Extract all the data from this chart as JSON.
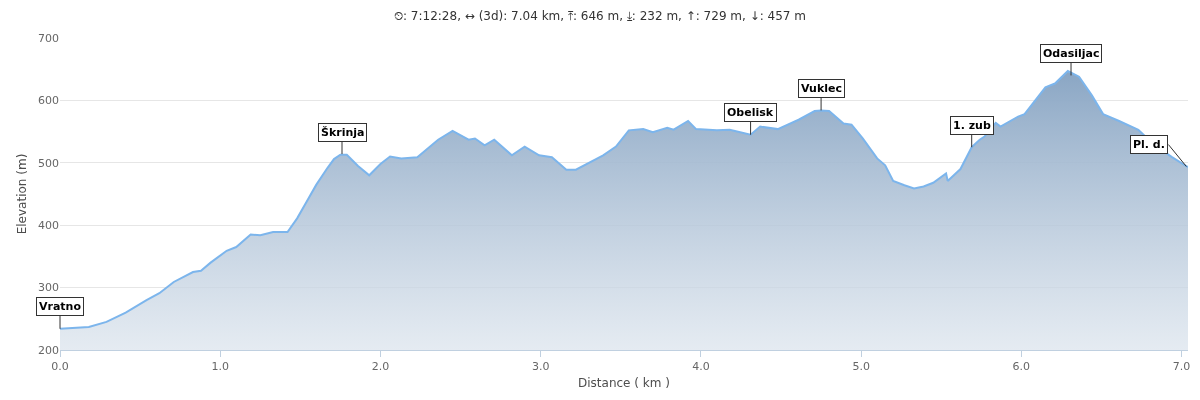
{
  "chart_data": {
    "type": "area",
    "title": "⏲: 7:12:28, ↔ (3d): 7.04 km, ⤒: 646 m, ⤓: 232 m, ↑: 729 m, ↓: 457 m",
    "xlabel": "Distance ( km )",
    "ylabel": "Elevation (m)",
    "x": [
      0,
      0.18,
      0.29,
      0.41,
      0.54,
      0.62,
      0.71,
      0.83,
      0.88,
      0.94,
      1.04,
      1.1,
      1.19,
      1.25,
      1.33,
      1.42,
      1.48,
      1.54,
      1.6,
      1.67,
      1.71,
      1.75,
      1.79,
      1.86,
      1.93,
      2.0,
      2.06,
      2.13,
      2.23,
      2.36,
      2.45,
      2.55,
      2.59,
      2.65,
      2.71,
      2.82,
      2.9,
      2.99,
      3.07,
      3.16,
      3.22,
      3.39,
      3.47,
      3.55,
      3.64,
      3.7,
      3.79,
      3.83,
      3.92,
      3.97,
      4.1,
      4.18,
      4.31,
      4.37,
      4.48,
      4.61,
      4.71,
      4.75,
      4.8,
      4.89,
      4.94,
      5.01,
      5.1,
      5.15,
      5.2,
      5.27,
      5.33,
      5.39,
      5.45,
      5.53,
      5.54,
      5.62,
      5.69,
      5.74,
      5.77,
      5.84,
      5.87,
      5.98,
      6.02,
      6.15,
      6.21,
      6.29,
      6.36,
      6.44,
      6.51,
      6.61,
      6.73,
      6.82,
      6.94,
      7.04
    ],
    "series": [
      {
        "color": "#7cb5ec",
        "values": [
          234,
          237,
          245,
          260,
          280,
          291,
          309,
          325,
          327,
          340,
          359,
          365,
          385,
          384,
          389,
          389,
          411,
          438,
          465,
          492,
          506,
          513,
          513,
          495,
          480,
          498,
          510,
          507,
          509,
          537,
          551,
          537,
          539,
          528,
          537,
          512,
          526,
          512,
          509,
          489,
          489,
          512,
          526,
          552,
          554,
          549,
          556,
          553,
          567,
          554,
          552,
          553,
          545,
          558,
          554,
          569,
          583,
          584,
          583,
          563,
          561,
          539,
          507,
          496,
          471,
          464,
          459,
          462,
          468,
          483,
          471,
          490,
          525,
          537,
          542,
          564,
          558,
          574,
          578,
          621,
          627,
          647,
          638,
          608,
          578,
          567,
          553,
          531,
          509,
          493
        ]
      }
    ],
    "xlim": [
      0,
      7.04
    ],
    "ylim": [
      200,
      700
    ],
    "xticks": [
      {
        "value": 0,
        "label": "0.0"
      },
      {
        "value": 1,
        "label": "1.0"
      },
      {
        "value": 2,
        "label": "2.0"
      },
      {
        "value": 3,
        "label": "3.0"
      },
      {
        "value": 4,
        "label": "4.0"
      },
      {
        "value": 5,
        "label": "5.0"
      },
      {
        "value": 6,
        "label": "6.0"
      },
      {
        "value": 7,
        "label": "7.0"
      }
    ],
    "yticks": [
      200,
      300,
      400,
      500,
      600,
      700
    ],
    "grid": "y",
    "annotations": [
      {
        "text": "Vratno",
        "x": 0,
        "y": 234
      },
      {
        "text": "Škrinja",
        "x": 1.76,
        "y": 514
      },
      {
        "text": "Obelisk",
        "x": 4.31,
        "y": 545
      },
      {
        "text": "Vuklec",
        "x": 4.75,
        "y": 584
      },
      {
        "text": "1. zub",
        "x": 5.69,
        "y": 525
      },
      {
        "text": "Odasiljac",
        "x": 6.31,
        "y": 640
      },
      {
        "text": "Pl. d.",
        "x": 7.03,
        "y": 494
      }
    ]
  }
}
